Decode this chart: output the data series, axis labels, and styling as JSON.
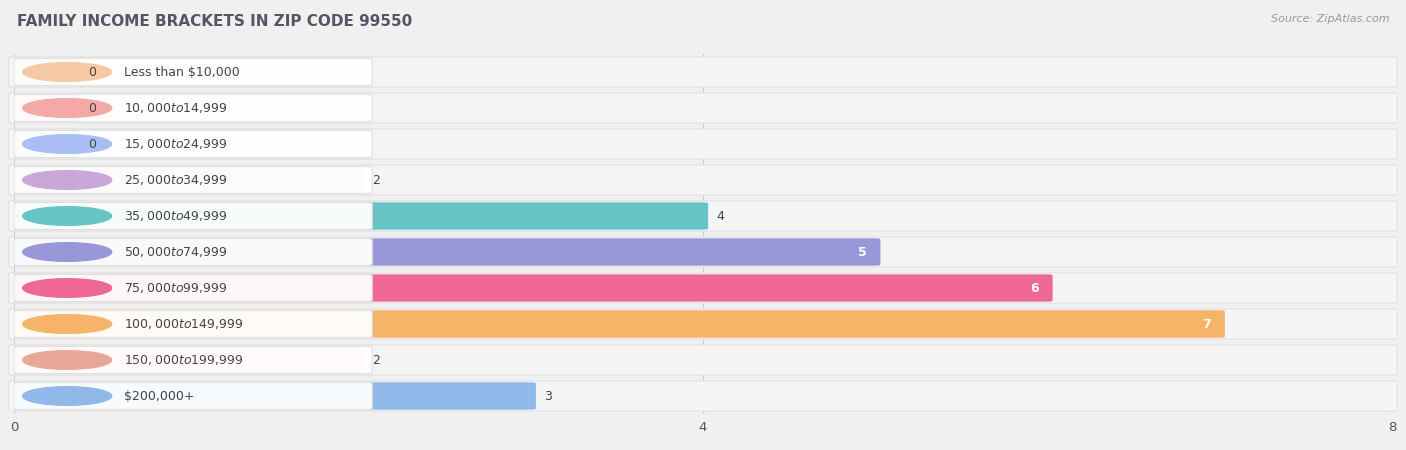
{
  "title": "FAMILY INCOME BRACKETS IN ZIP CODE 99550",
  "source": "Source: ZipAtlas.com",
  "categories": [
    "Less than $10,000",
    "$10,000 to $14,999",
    "$15,000 to $24,999",
    "$25,000 to $34,999",
    "$35,000 to $49,999",
    "$50,000 to $74,999",
    "$75,000 to $99,999",
    "$100,000 to $149,999",
    "$150,000 to $199,999",
    "$200,000+"
  ],
  "values": [
    0,
    0,
    0,
    2,
    4,
    5,
    6,
    7,
    2,
    3
  ],
  "bar_colors": [
    "#f5c9a3",
    "#f5a8a8",
    "#a8bef5",
    "#c8a8d8",
    "#68c4c4",
    "#9898d8",
    "#f06898",
    "#f5b468",
    "#e8a898",
    "#90b8e8"
  ],
  "label_bg_colors": [
    "#f5c9a3",
    "#f5a8a8",
    "#a8bef5",
    "#c8a8d8",
    "#68c4c4",
    "#9898d8",
    "#f06898",
    "#f5b468",
    "#e8a898",
    "#90b8e8"
  ],
  "xlim": [
    0,
    8
  ],
  "xticks": [
    0,
    4,
    8
  ],
  "row_bg_color": "#f5f5f5",
  "row_border_color": "#e0e0e0",
  "background_color": "#f0f0f0",
  "title_fontsize": 11,
  "source_fontsize": 8,
  "label_fontsize": 9,
  "value_fontsize": 9
}
